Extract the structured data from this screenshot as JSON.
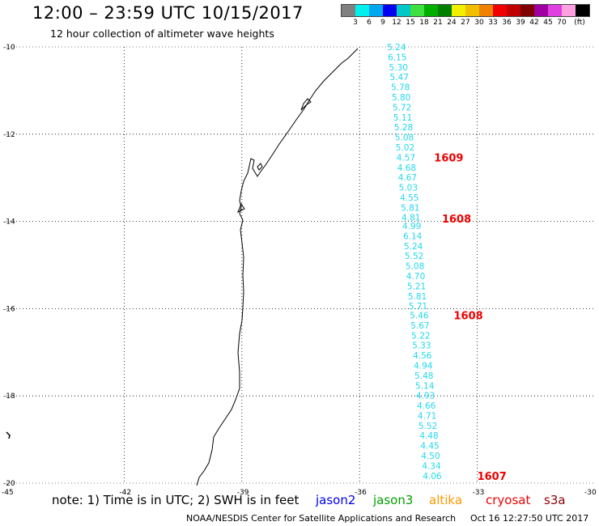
{
  "header": {
    "title": "12:00 – 23:59 UTC 10/15/2017",
    "subtitle": "12 hour collection of altimeter wave heights"
  },
  "legend": {
    "colors": [
      "#808080",
      "#00f0f0",
      "#00a8f0",
      "#0000f0",
      "#00c8c8",
      "#40e040",
      "#00b000",
      "#008000",
      "#f0f000",
      "#f0c000",
      "#f08000",
      "#f00000",
      "#c00000",
      "#800000",
      "#a000a0",
      "#e040e0",
      "#ffa0e0",
      "#000000"
    ],
    "labels": [
      "3",
      "6",
      "9",
      "12",
      "15",
      "18",
      "21",
      "24",
      "27",
      "30",
      "33",
      "36",
      "39",
      "42",
      "45",
      "70",
      "(ft)"
    ]
  },
  "map": {
    "lon_ticks": [
      "-45",
      "-42",
      "-39",
      "-36",
      "-33",
      "-30"
    ],
    "lat_ticks": [
      "-10",
      "-12",
      "-14",
      "-16",
      "-18",
      "-20"
    ],
    "wave_heights": [
      {
        "lon": -35.3,
        "lat": -10.0,
        "value": "5.24"
      },
      {
        "lon": -35.28,
        "lat": -10.23,
        "value": "6.15"
      },
      {
        "lon": -35.25,
        "lat": -10.46,
        "value": "5.30"
      },
      {
        "lon": -35.23,
        "lat": -10.69,
        "value": "5.47"
      },
      {
        "lon": -35.2,
        "lat": -10.92,
        "value": "5.78"
      },
      {
        "lon": -35.18,
        "lat": -11.15,
        "value": "5.80"
      },
      {
        "lon": -35.16,
        "lat": -11.38,
        "value": "5.72"
      },
      {
        "lon": -35.14,
        "lat": -11.61,
        "value": "5.11"
      },
      {
        "lon": -35.12,
        "lat": -11.84,
        "value": "5.28"
      },
      {
        "lon": -35.1,
        "lat": -12.07,
        "value": "5.08"
      },
      {
        "lon": -35.08,
        "lat": -12.3,
        "value": "5.02"
      },
      {
        "lon": -35.06,
        "lat": -12.53,
        "value": "4.57"
      },
      {
        "lon": -35.04,
        "lat": -12.76,
        "value": "4.68"
      },
      {
        "lon": -35.02,
        "lat": -12.99,
        "value": "4.67"
      },
      {
        "lon": -35.0,
        "lat": -13.22,
        "value": "5.03"
      },
      {
        "lon": -34.97,
        "lat": -13.45,
        "value": "4.55"
      },
      {
        "lon": -34.95,
        "lat": -13.68,
        "value": "5.81"
      },
      {
        "lon": -34.93,
        "lat": -13.91,
        "value": "4.81"
      },
      {
        "lon": -34.91,
        "lat": -14.1,
        "value": "4.99"
      },
      {
        "lon": -34.89,
        "lat": -14.33,
        "value": "6.14"
      },
      {
        "lon": -34.87,
        "lat": -14.56,
        "value": "5.24"
      },
      {
        "lon": -34.85,
        "lat": -14.79,
        "value": "5.52"
      },
      {
        "lon": -34.83,
        "lat": -15.02,
        "value": "5.08"
      },
      {
        "lon": -34.81,
        "lat": -15.25,
        "value": "4.70"
      },
      {
        "lon": -34.79,
        "lat": -15.48,
        "value": "5.21"
      },
      {
        "lon": -34.77,
        "lat": -15.71,
        "value": "5.81"
      },
      {
        "lon": -34.75,
        "lat": -15.94,
        "value": "5.71"
      },
      {
        "lon": -34.72,
        "lat": -16.15,
        "value": "5.46"
      },
      {
        "lon": -34.7,
        "lat": -16.38,
        "value": "5.67"
      },
      {
        "lon": -34.68,
        "lat": -16.61,
        "value": "5.22"
      },
      {
        "lon": -34.66,
        "lat": -16.84,
        "value": "5.33"
      },
      {
        "lon": -34.64,
        "lat": -17.07,
        "value": "4.56"
      },
      {
        "lon": -34.62,
        "lat": -17.3,
        "value": "4.94"
      },
      {
        "lon": -34.6,
        "lat": -17.53,
        "value": "5.48"
      },
      {
        "lon": -34.58,
        "lat": -17.76,
        "value": "5.14"
      },
      {
        "lon": -34.56,
        "lat": -17.99,
        "value": "4.93"
      },
      {
        "lon": -34.54,
        "lat": -18.22,
        "value": "4.66"
      },
      {
        "lon": -34.52,
        "lat": -18.45,
        "value": "4.71"
      },
      {
        "lon": -34.5,
        "lat": -18.68,
        "value": "5.52"
      },
      {
        "lon": -34.47,
        "lat": -18.91,
        "value": "4.48"
      },
      {
        "lon": -34.45,
        "lat": -19.14,
        "value": "4.45"
      },
      {
        "lon": -34.43,
        "lat": -19.37,
        "value": "4.50"
      },
      {
        "lon": -34.41,
        "lat": -19.6,
        "value": "4.34"
      },
      {
        "lon": -34.39,
        "lat": -19.83,
        "value": "4.06"
      }
    ],
    "track_times": [
      {
        "lon": -34.1,
        "lat": -12.53,
        "value": "1609"
      },
      {
        "lon": -33.9,
        "lat": -13.93,
        "value": "1608"
      },
      {
        "lon": -33.6,
        "lat": -16.15,
        "value": "1608"
      },
      {
        "lon": -33.0,
        "lat": -19.83,
        "value": "1607"
      }
    ]
  },
  "notes": {
    "text": "note: 1) Time is in UTC; 2) SWH is in feet",
    "satellites": [
      {
        "name": "jason2",
        "color": "#0000ee"
      },
      {
        "name": "jason3",
        "color": "#00a000"
      },
      {
        "name": "altika",
        "color": "#ff9900"
      },
      {
        "name": "cryosat",
        "color": "#ee0000"
      },
      {
        "name": "s3a",
        "color": "#8b0000"
      }
    ]
  },
  "footer": {
    "credit": "NOAA/NESDIS Center for Satellite Applications and Research",
    "timestamp": "Oct 16 12:27:50 UTC 2017"
  }
}
